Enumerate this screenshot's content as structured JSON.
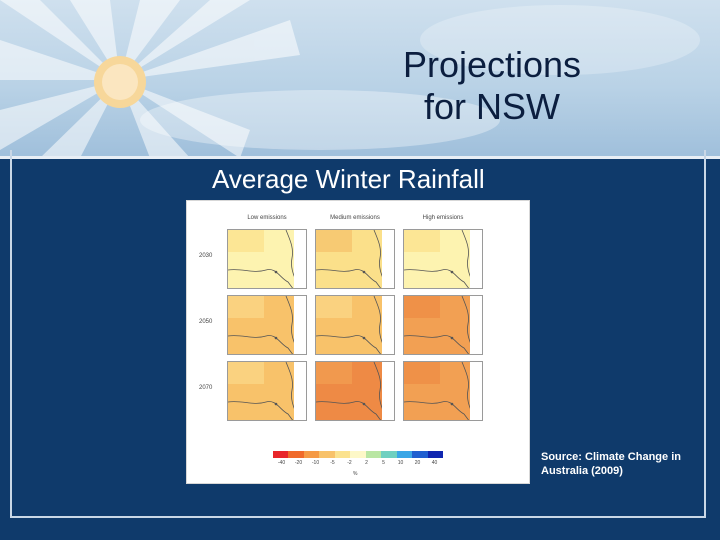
{
  "slide": {
    "title_line1": "Projections",
    "title_line2": "for NSW",
    "subtitle": "Average Winter Rainfall",
    "source": "Source: Climate Change in Australia (2009)"
  },
  "figure": {
    "columns": [
      "Low emissions",
      "Medium emissions",
      "High emissions"
    ],
    "rows": [
      "2030",
      "2050",
      "2070"
    ],
    "panels": [
      [
        "light-yellow",
        "yellow-mixed",
        "light-yellow"
      ],
      [
        "light-orange",
        "light-orange",
        "orange"
      ],
      [
        "light-orange",
        "dark-orange",
        "orange"
      ]
    ],
    "legend": {
      "ticks": [
        "-40",
        "-20",
        "-10",
        "-5",
        "-2",
        "2",
        "5",
        "10",
        "20",
        "40"
      ],
      "unit": "%",
      "colors": [
        "#e8262a",
        "#f06a2a",
        "#f59a45",
        "#f8c26a",
        "#fbe28f",
        "#fdf8c8",
        "#b9e6a3",
        "#6fd0c0",
        "#3aa6e6",
        "#1f5fd0",
        "#1026b0"
      ]
    }
  },
  "colors": {
    "background": "#0f3a6b",
    "title": "#0b1e3f",
    "text": "#ffffff"
  }
}
